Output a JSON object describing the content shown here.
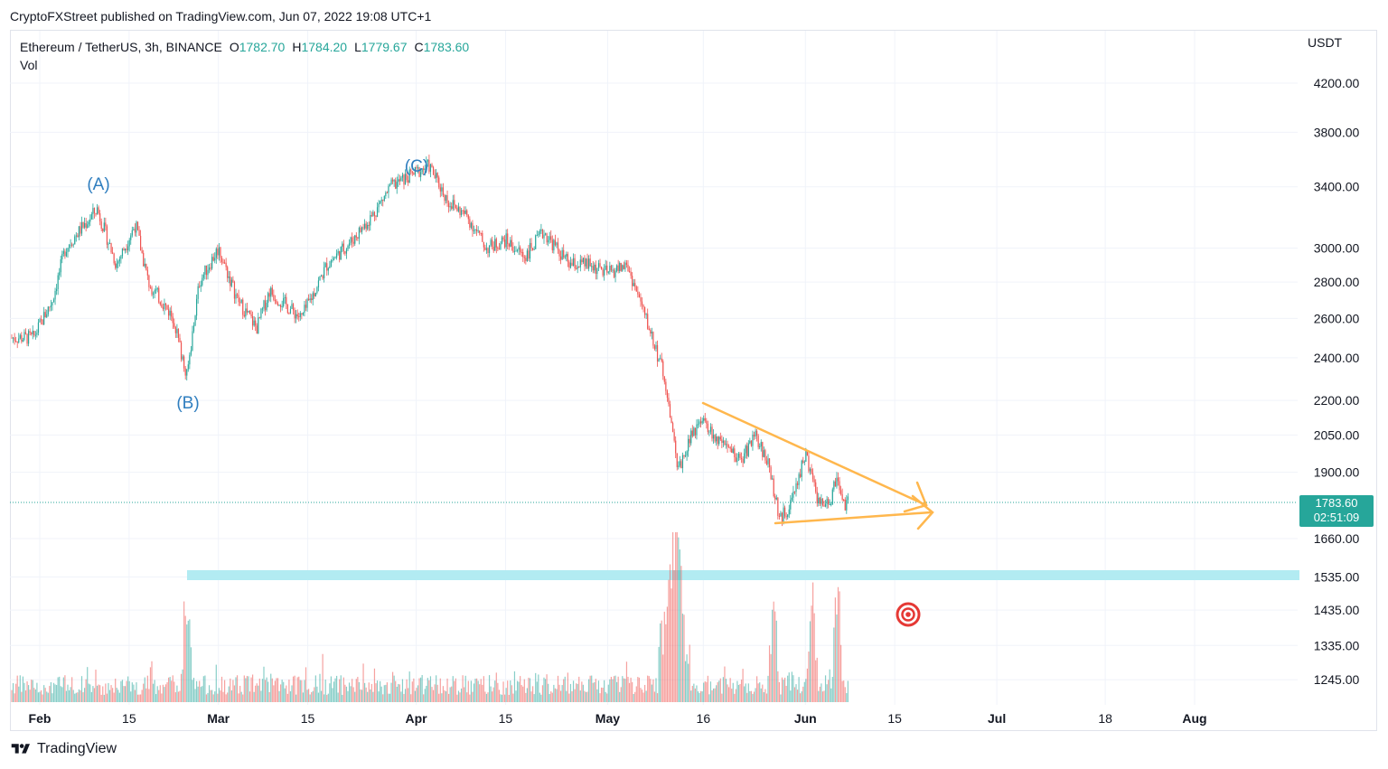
{
  "publisher": "CryptoFXStreet published on TradingView.com, Jun 07, 2022 19:08 UTC+1",
  "legend": {
    "symbol": "Ethereum / TetherUS, 3h, BINANCE",
    "o_label": "O",
    "o_value": "1782.70",
    "h_label": "H",
    "h_value": "1784.20",
    "l_label": "L",
    "l_value": "1779.67",
    "c_label": "C",
    "c_value": "1783.60",
    "study": "Vol"
  },
  "axis_unit": "USDT",
  "last_price": {
    "price": "1783.60",
    "countdown": "02:51:09"
  },
  "brand": "TradingView",
  "colors": {
    "up": "#26a69a",
    "down": "#ef5350",
    "wave_label": "#2f7ebf",
    "triangle": "#ffb74d",
    "zone": "#b2ebf2",
    "target": "#e53935"
  },
  "chart_data": {
    "type": "candlestick",
    "symbol": "ETH/USDT",
    "interval": "3h",
    "x_labels": [
      "Feb",
      "15",
      "Mar",
      "15",
      "Apr",
      "15",
      "May",
      "16",
      "Jun",
      "15",
      "Jul",
      "18",
      "Aug"
    ],
    "y_labels": [
      "4200.00",
      "3800.00",
      "3400.00",
      "3000.00",
      "2800.00",
      "2600.00",
      "2400.00",
      "2200.00",
      "2050.00",
      "1900.00",
      "1660.00",
      "1535.00",
      "1435.00",
      "1335.00",
      "1245.00"
    ],
    "y_scale": "log",
    "wave_labels": [
      "(A)",
      "(B)",
      "(C)"
    ],
    "path_points": [
      [
        "2022-01-31",
        2500
      ],
      [
        "2022-02-03",
        2700
      ],
      [
        "2022-02-05",
        3000
      ],
      [
        "2022-02-10",
        3250
      ],
      [
        "2022-02-13",
        2900
      ],
      [
        "2022-02-16",
        3150
      ],
      [
        "2022-02-18",
        2800
      ],
      [
        "2022-02-22",
        2600
      ],
      [
        "2022-02-24",
        2300
      ],
      [
        "2022-02-26",
        2800
      ],
      [
        "2022-03-01",
        3000
      ],
      [
        "2022-03-04",
        2700
      ],
      [
        "2022-03-07",
        2550
      ],
      [
        "2022-03-09",
        2750
      ],
      [
        "2022-03-14",
        2600
      ],
      [
        "2022-03-18",
        2900
      ],
      [
        "2022-03-22",
        3050
      ],
      [
        "2022-03-25",
        3200
      ],
      [
        "2022-03-28",
        3400
      ],
      [
        "2022-04-01",
        3500
      ],
      [
        "2022-04-03",
        3550
      ],
      [
        "2022-04-06",
        3300
      ],
      [
        "2022-04-09",
        3200
      ],
      [
        "2022-04-12",
        3000
      ],
      [
        "2022-04-15",
        3050
      ],
      [
        "2022-04-18",
        2950
      ],
      [
        "2022-04-21",
        3100
      ],
      [
        "2022-04-25",
        2900
      ],
      [
        "2022-04-28",
        2900
      ],
      [
        "2022-05-01",
        2850
      ],
      [
        "2022-05-04",
        2900
      ],
      [
        "2022-05-06",
        2700
      ],
      [
        "2022-05-08",
        2500
      ],
      [
        "2022-05-10",
        2300
      ],
      [
        "2022-05-12",
        1900
      ],
      [
        "2022-05-14",
        2050
      ],
      [
        "2022-05-16",
        2100
      ],
      [
        "2022-05-19",
        2000
      ],
      [
        "2022-05-22",
        1950
      ],
      [
        "2022-05-24",
        2050
      ],
      [
        "2022-05-26",
        1950
      ],
      [
        "2022-05-28",
        1720
      ],
      [
        "2022-05-30",
        1800
      ],
      [
        "2022-06-01",
        1980
      ],
      [
        "2022-06-03",
        1780
      ],
      [
        "2022-06-05",
        1800
      ],
      [
        "2022-06-06",
        1900
      ],
      [
        "2022-06-07",
        1783.6
      ]
    ],
    "triangle": {
      "upper": [
        [
          "2022-05-16",
          2180
        ],
        [
          "2022-06-19",
          1790
        ]
      ],
      "lower": [
        [
          "2022-05-28",
          1730
        ],
        [
          "2022-06-20",
          1765
        ]
      ]
    },
    "support_zone": [
      1520,
      1550
    ],
    "volume_spikes": [
      "2022-02-24",
      "2022-05-11",
      "2022-05-12",
      "2022-05-27",
      "2022-06-02",
      "2022-06-06"
    ]
  }
}
